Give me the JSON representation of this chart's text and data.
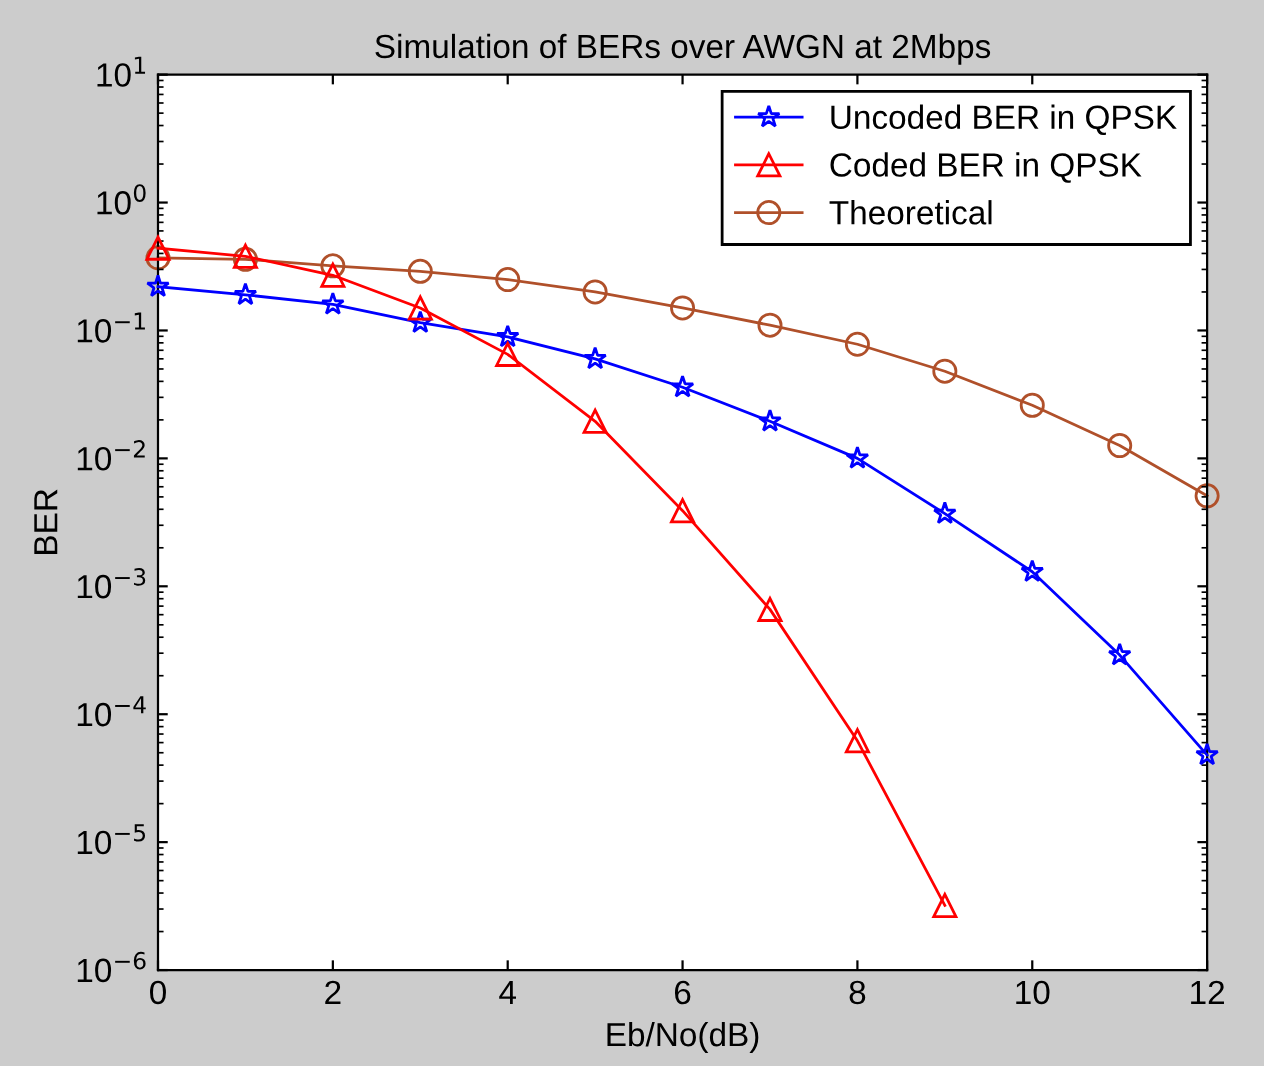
{
  "chart_data": {
    "type": "line",
    "title": "Simulation of BERs over AWGN at 2Mbps",
    "xlabel": "Eb/No(dB)",
    "ylabel": "BER",
    "x": [
      0,
      1,
      2,
      3,
      4,
      5,
      6,
      7,
      8,
      9,
      10,
      11,
      12
    ],
    "series": [
      {
        "name": "Uncoded BER in QPSK",
        "color": "#0000ff",
        "marker": "star",
        "values": [
          0.22,
          0.19,
          0.16,
          0.115,
          0.089,
          0.06,
          0.036,
          0.0195,
          0.01,
          0.0037,
          0.0013,
          0.00029,
          4.8e-05
        ]
      },
      {
        "name": "Coded BER in QPSK",
        "color": "#ff0000",
        "marker": "triangle",
        "values": [
          0.44,
          0.38,
          0.27,
          0.15,
          0.065,
          0.0195,
          0.0039,
          0.00066,
          6.2e-05,
          3.2e-06,
          null,
          null,
          null
        ]
      },
      {
        "name": "Theoretical",
        "color": "#b0502a",
        "marker": "circle",
        "values": [
          0.37,
          0.36,
          0.32,
          0.29,
          0.25,
          0.2,
          0.15,
          0.11,
          0.078,
          0.048,
          0.026,
          0.0126,
          0.0051
        ]
      }
    ],
    "log": "y",
    "xlim": [
      0,
      12
    ],
    "ylim": [
      1e-06,
      10
    ],
    "xticks": [
      0,
      2,
      4,
      6,
      8,
      10,
      12
    ],
    "yticks": [
      {
        "value": 1e-06,
        "label": "10$^{−6}$"
      },
      {
        "value": 1e-05,
        "label": "10$^{−5}$"
      },
      {
        "value": 0.0001,
        "label": "10$^{−4}$"
      },
      {
        "value": 0.001,
        "label": "10$^{−3}$"
      },
      {
        "value": 0.01,
        "label": "10$^{−2}$"
      },
      {
        "value": 0.1,
        "label": "10$^{−1}$"
      },
      {
        "value": 1,
        "label": "10$^{0}$"
      },
      {
        "value": 10,
        "label": "10$^{1}$"
      }
    ],
    "legend": "top right",
    "grid": false,
    "line_style": "solid"
  }
}
